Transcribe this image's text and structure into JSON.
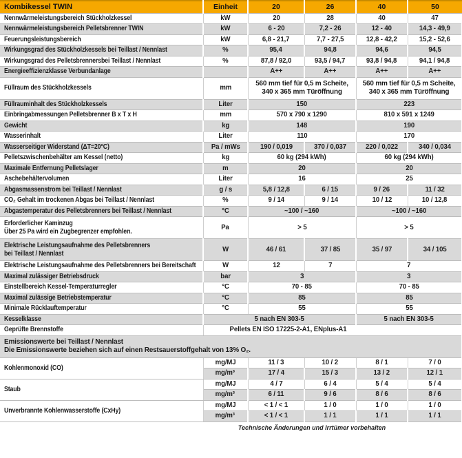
{
  "table": {
    "title": "Kombikessel TWIN",
    "columns": [
      "Einheit",
      "20",
      "26",
      "40",
      "50"
    ],
    "colors": {
      "header_bg": "#F6A800",
      "header_top": "#C88C00",
      "row_gray": "#D9D9D9",
      "border": "#BDBDBD"
    },
    "rows": [
      {
        "kind": "row",
        "bg": "w",
        "label": [
          "Nennwärmeleistungsbereich Stückholzkessel"
        ],
        "cells": [
          {
            "t": "kW",
            "u": true
          },
          {
            "t": "20"
          },
          {
            "t": "28"
          },
          {
            "t": "40"
          },
          {
            "t": "47"
          }
        ]
      },
      {
        "kind": "row",
        "bg": "g",
        "label": [
          "Nennwärmeleistungsbereich Pelletsbrenner TWIN"
        ],
        "cells": [
          {
            "t": "kW",
            "u": true
          },
          {
            "t": "6 - 20"
          },
          {
            "t": "7,2 - 26"
          },
          {
            "t": "12 - 40"
          },
          {
            "t": "14,3 - 49,9"
          }
        ]
      },
      {
        "kind": "row",
        "bg": "w",
        "label": [
          "Feuerungsleistungsbereich"
        ],
        "cells": [
          {
            "t": "kW",
            "u": true
          },
          {
            "t": "6,8 - 21,7"
          },
          {
            "t": "7,7 - 27,5"
          },
          {
            "t": "12,8 - 42,2"
          },
          {
            "t": "15,2 - 52,6"
          }
        ]
      },
      {
        "kind": "row",
        "bg": "g",
        "label": [
          "Wirkungsgrad des Stückholzkessels bei Teillast / Nennlast"
        ],
        "cells": [
          {
            "t": "%",
            "u": true
          },
          {
            "t": "95,4"
          },
          {
            "t": "94,8"
          },
          {
            "t": "94,6"
          },
          {
            "t": "94,5"
          }
        ]
      },
      {
        "kind": "row",
        "bg": "w",
        "label": [
          "Wirkungsgrad des Pelletsbrennersbei Teillast / Nennlast"
        ],
        "cells": [
          {
            "t": "%",
            "u": true
          },
          {
            "t": "87,8 / 92,0"
          },
          {
            "t": "93,5 / 94,7"
          },
          {
            "t": "93,8 / 94,8"
          },
          {
            "t": "94,1 / 94,8"
          }
        ]
      },
      {
        "kind": "row",
        "bg": "g",
        "label": [
          "Energieeffizienzklasse Verbundanlage"
        ],
        "cells": [
          {
            "t": "",
            "u": true
          },
          {
            "t": "A++"
          },
          {
            "t": "A++"
          },
          {
            "t": "A++"
          },
          {
            "t": "A++"
          }
        ]
      },
      {
        "kind": "row",
        "bg": "w",
        "h": 2,
        "label": [
          "Füllraum des Stückholzkessels"
        ],
        "cells": [
          {
            "t": "mm",
            "u": true
          },
          {
            "t": [
              "560 mm tief für 0,5 m Scheite,",
              "340 x 365 mm Türöffnung"
            ],
            "s": 2
          },
          {
            "t": [
              "560 mm tief für 0,5 m Scheite,",
              "340 x 365 mm Türöffnung"
            ],
            "s": 2
          }
        ]
      },
      {
        "kind": "row",
        "bg": "g",
        "label": [
          "Füllrauminhalt des Stückholzkessels"
        ],
        "cells": [
          {
            "t": "Liter",
            "u": true
          },
          {
            "t": "150",
            "s": 2
          },
          {
            "t": "223",
            "s": 2
          }
        ]
      },
      {
        "kind": "row",
        "bg": "w",
        "label": [
          "Einbringabmessungen Pelletsbrenner B x T x H"
        ],
        "cells": [
          {
            "t": "mm",
            "u": true
          },
          {
            "t": "570 x 790 x 1290",
            "s": 2
          },
          {
            "t": "810 x 591 x 1249",
            "s": 2
          }
        ]
      },
      {
        "kind": "row",
        "bg": "g",
        "label": [
          "Gewicht"
        ],
        "cells": [
          {
            "t": "kg",
            "u": true
          },
          {
            "t": "148",
            "s": 2
          },
          {
            "t": "190",
            "s": 2
          }
        ]
      },
      {
        "kind": "row",
        "bg": "w",
        "label": [
          "Wasserinhalt"
        ],
        "cells": [
          {
            "t": "Liter",
            "u": true
          },
          {
            "t": "110",
            "s": 2
          },
          {
            "t": "170",
            "s": 2
          }
        ]
      },
      {
        "kind": "row",
        "bg": "g",
        "label": [
          "Wasserseitiger Widerstand (ΔT=20°C)"
        ],
        "cells": [
          {
            "t": "Pa / mWs",
            "u": true
          },
          {
            "t": "190 / 0,019"
          },
          {
            "t": "370 / 0,037"
          },
          {
            "t": "220 / 0,022"
          },
          {
            "t": "340 / 0,034"
          }
        ]
      },
      {
        "kind": "row",
        "bg": "w",
        "label": [
          "Pelletszwischenbehälter am Kessel (netto)"
        ],
        "cells": [
          {
            "t": "kg",
            "u": true
          },
          {
            "t": "60 kg (294 kWh)",
            "s": 2
          },
          {
            "t": "60 kg (294 kWh)",
            "s": 2
          }
        ]
      },
      {
        "kind": "row",
        "bg": "g",
        "label": [
          "Maximale Entfernung Pelletslager"
        ],
        "cells": [
          {
            "t": "m",
            "u": true
          },
          {
            "t": "20",
            "s": 2
          },
          {
            "t": "20",
            "s": 2
          }
        ]
      },
      {
        "kind": "row",
        "bg": "w",
        "label": [
          "Aschebehältervolumen"
        ],
        "cells": [
          {
            "t": "Liter",
            "u": true
          },
          {
            "t": "16",
            "s": 2
          },
          {
            "t": "25",
            "s": 2
          }
        ]
      },
      {
        "kind": "row",
        "bg": "g",
        "label": [
          "Abgasmassenstrom bei Teillast / Nennlast"
        ],
        "cells": [
          {
            "t": "g / s",
            "u": true
          },
          {
            "t": "5,8 / 12,8"
          },
          {
            "t": "6 / 15"
          },
          {
            "t": "9 / 26"
          },
          {
            "t": "11 / 32"
          }
        ]
      },
      {
        "kind": "row",
        "bg": "w",
        "label": [
          "CO₂ Gehalt im trockenen Abgas bei Teillast / Nennlast"
        ],
        "cells": [
          {
            "t": "%",
            "u": true
          },
          {
            "t": "9 / 14"
          },
          {
            "t": "9 / 14"
          },
          {
            "t": "10 / 12"
          },
          {
            "t": "10 / 12,8"
          }
        ]
      },
      {
        "kind": "row",
        "bg": "g",
        "label": [
          "Abgastemperatur des Pelletsbrenners bei Teillast / Nennlast"
        ],
        "cells": [
          {
            "t": "°C",
            "u": true
          },
          {
            "t": "~100 / ~160",
            "s": 2
          },
          {
            "t": "~100 / ~160",
            "s": 2
          }
        ]
      },
      {
        "kind": "row",
        "bg": "w",
        "h": 2,
        "label": [
          "Erforderlicher Kaminzug",
          "Über 25 Pa wird ein Zugbegrenzer empfohlen."
        ],
        "cells": [
          {
            "t": "Pa",
            "u": true
          },
          {
            "t": "> 5",
            "s": 2
          },
          {
            "t": "> 5",
            "s": 2
          }
        ]
      },
      {
        "kind": "row",
        "bg": "g",
        "h": 2,
        "label": [
          "Elektrische Leistungsaufnahme des Pelletsbrenners",
          "bei Teillast / Nennlast"
        ],
        "cells": [
          {
            "t": "W",
            "u": true
          },
          {
            "t": "46 / 61"
          },
          {
            "t": "37 / 85"
          },
          {
            "t": "35 / 97"
          },
          {
            "t": "34 / 105"
          }
        ]
      },
      {
        "kind": "row",
        "bg": "w",
        "label": [
          "Elektrische Leistungsaufnahme des Pelletsbrenners bei Bereitschaft"
        ],
        "cells": [
          {
            "t": "W",
            "u": true
          },
          {
            "t": "12"
          },
          {
            "t": "7"
          },
          {
            "t": "7",
            "s": 2
          }
        ]
      },
      {
        "kind": "row",
        "bg": "g",
        "label": [
          "Maximal zulässiger Betriebsdruck"
        ],
        "cells": [
          {
            "t": "bar",
            "u": true
          },
          {
            "t": "3",
            "s": 2
          },
          {
            "t": "3",
            "s": 2
          }
        ]
      },
      {
        "kind": "row",
        "bg": "w",
        "label": [
          "Einstellbereich Kessel-Temperaturregler"
        ],
        "cells": [
          {
            "t": "°C",
            "u": true
          },
          {
            "t": "70 - 85",
            "s": 2
          },
          {
            "t": "70 - 85",
            "s": 2
          }
        ]
      },
      {
        "kind": "row",
        "bg": "g",
        "label": [
          "Maximal zulässige Betriebstemperatur"
        ],
        "cells": [
          {
            "t": "°C",
            "u": true
          },
          {
            "t": "85",
            "s": 2
          },
          {
            "t": "85",
            "s": 2
          }
        ]
      },
      {
        "kind": "row",
        "bg": "w",
        "label": [
          "Minimale Rücklauftemperatur"
        ],
        "cells": [
          {
            "t": "°C",
            "u": true
          },
          {
            "t": "55",
            "s": 2
          },
          {
            "t": "55",
            "s": 2
          }
        ]
      },
      {
        "kind": "row",
        "bg": "g",
        "label": [
          "Kesselklasse"
        ],
        "cells": [
          {
            "t": "5 nach EN 303-5",
            "s": 3
          },
          {
            "t": "5 nach EN 303-5",
            "s": 2
          }
        ]
      },
      {
        "kind": "row",
        "bg": "w",
        "label": [
          "Geprüfte Brennstoffe"
        ],
        "cells": [
          {
            "t": "Pellets EN ISO 17225-2-A1, ENplus-A1",
            "s": 5,
            "shift": 130
          }
        ]
      },
      {
        "kind": "section",
        "bg": "g",
        "label": [
          "Emissionswerte bei Teillast / Nennlast",
          "Die Emissionswerte beziehen sich auf einen Restsauerstoffgehalt von 13% O₂."
        ]
      },
      {
        "kind": "pair",
        "label": [
          "Kohlenmonoxid (CO)"
        ],
        "sub": [
          {
            "bg": "w",
            "cells": [
              {
                "t": "mg/MJ",
                "u": true
              },
              {
                "t": "11 / 3"
              },
              {
                "t": "10 / 2"
              },
              {
                "t": "8 / 1"
              },
              {
                "t": "7 / 0"
              }
            ]
          },
          {
            "bg": "g",
            "cells": [
              {
                "t": "mg/m³",
                "u": true
              },
              {
                "t": "17 / 4"
              },
              {
                "t": "15 / 3"
              },
              {
                "t": "13 / 2"
              },
              {
                "t": "12 / 1"
              }
            ]
          }
        ]
      },
      {
        "kind": "pair",
        "label": [
          "Staub"
        ],
        "sub": [
          {
            "bg": "w",
            "cells": [
              {
                "t": "mg/MJ",
                "u": true
              },
              {
                "t": "4 / 7"
              },
              {
                "t": "6 / 4"
              },
              {
                "t": "5 / 4"
              },
              {
                "t": "5 / 4"
              }
            ]
          },
          {
            "bg": "g",
            "cells": [
              {
                "t": "mg/m³",
                "u": true
              },
              {
                "t": "6 / 11"
              },
              {
                "t": "9 / 6"
              },
              {
                "t": "8 / 6"
              },
              {
                "t": "8 / 6"
              }
            ]
          }
        ]
      },
      {
        "kind": "pair",
        "label": [
          "Unverbrannte Kohlenwasserstoffe (CxHy)"
        ],
        "sub": [
          {
            "bg": "w",
            "cells": [
              {
                "t": "mg/MJ",
                "u": true
              },
              {
                "t": "< 1 / < 1"
              },
              {
                "t": "1 / 0"
              },
              {
                "t": "1 / 0"
              },
              {
                "t": "1 / 0"
              }
            ]
          },
          {
            "bg": "g",
            "cells": [
              {
                "t": "mg/m³",
                "u": true
              },
              {
                "t": "< 1 / < 1"
              },
              {
                "t": "1 / 1"
              },
              {
                "t": "1 / 1"
              },
              {
                "t": "1 / 1"
              }
            ]
          }
        ]
      }
    ],
    "footer": "Technische Änderungen und Irrtümer vorbehalten"
  }
}
